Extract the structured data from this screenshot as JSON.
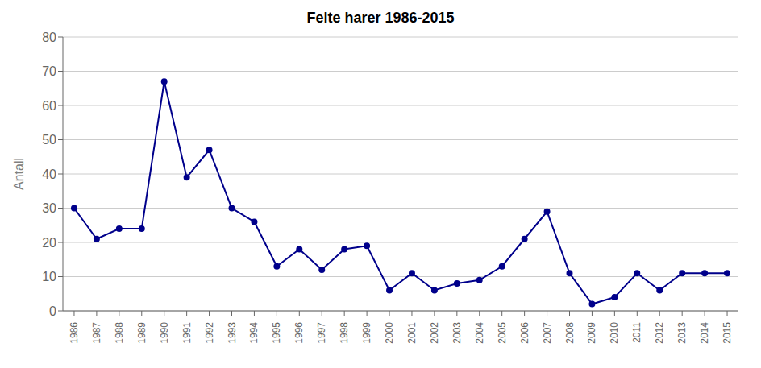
{
  "chart_data": {
    "type": "line",
    "title": "Felte harer 1986-2015",
    "ylabel": "Antall",
    "x": [
      1986,
      1987,
      1988,
      1989,
      1990,
      1991,
      1992,
      1993,
      1994,
      1995,
      1996,
      1997,
      1998,
      1999,
      2000,
      2001,
      2002,
      2003,
      2004,
      2005,
      2006,
      2007,
      2008,
      2009,
      2010,
      2011,
      2012,
      2013,
      2014,
      2015
    ],
    "values": [
      30,
      21,
      24,
      24,
      67,
      39,
      47,
      30,
      26,
      13,
      18,
      12,
      18,
      19,
      6,
      11,
      6,
      8,
      9,
      13,
      21,
      29,
      11,
      2,
      4,
      11,
      6,
      11,
      11,
      11
    ],
    "color": "#00008B",
    "marker": "circle",
    "xlim": [
      1985.5,
      2015.5
    ],
    "xticks": [
      1986,
      1987,
      1988,
      1989,
      1990,
      1991,
      1992,
      1993,
      1994,
      1995,
      1996,
      1997,
      1998,
      1999,
      2000,
      2001,
      2002,
      2003,
      2004,
      2005,
      2006,
      2007,
      2008,
      2009,
      2010,
      2011,
      2012,
      2013,
      2014,
      2015
    ],
    "ylim": [
      0,
      80
    ],
    "yticks": [
      0,
      10,
      20,
      30,
      40,
      50,
      60,
      70,
      80
    ],
    "grid": "y"
  }
}
